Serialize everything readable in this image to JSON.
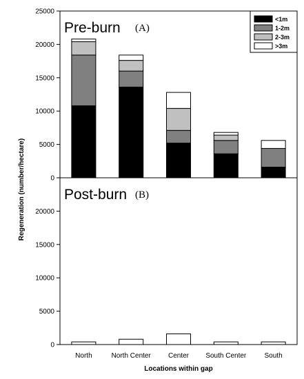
{
  "chart_data": {
    "type": "bar",
    "ylabel": "Regeneration (number/hectare)",
    "xlabel": "Locations within gap",
    "categories": [
      "North",
      "North Center",
      "Center",
      "South Center",
      "South"
    ],
    "legend_position": "top-right",
    "legend": [
      {
        "name": "<1m",
        "color": "#000000"
      },
      {
        "name": "1-2m",
        "color": "#808080"
      },
      {
        "name": "2-3m",
        "color": "#c0c0c0"
      },
      {
        "name": ">3m",
        "color": "#ffffff"
      }
    ],
    "panels": [
      {
        "title": "Pre-burn",
        "letter": "(A)",
        "ylim": [
          0,
          25000
        ],
        "yticks": [
          "0",
          "5000",
          "10000",
          "15000",
          "20000",
          "25000"
        ],
        "stacked": true,
        "series": [
          {
            "name": "<1m",
            "values": [
              10800,
              13600,
              5200,
              3600,
              1600
            ]
          },
          {
            "name": "1-2m",
            "values": [
              7600,
              2400,
              1900,
              2000,
              2800
            ]
          },
          {
            "name": "2-3m",
            "values": [
              2000,
              1600,
              3300,
              800,
              0
            ]
          },
          {
            "name": ">3m",
            "values": [
              400,
              800,
              2400,
              400,
              1200
            ]
          }
        ]
      },
      {
        "title": "Post-burn",
        "letter": "(B)",
        "ylim": [
          0,
          25000
        ],
        "yticks": [
          "0",
          "5000",
          "10000",
          "15000",
          "20000"
        ],
        "stacked": true,
        "series": [
          {
            "name": "<1m",
            "values": [
              0,
              0,
              0,
              0,
              0
            ]
          },
          {
            "name": "1-2m",
            "values": [
              0,
              0,
              0,
              0,
              0
            ]
          },
          {
            "name": "2-3m",
            "values": [
              0,
              0,
              0,
              0,
              0
            ]
          },
          {
            "name": ">3m",
            "values": [
              400,
              800,
              1600,
              400,
              400
            ]
          }
        ]
      }
    ]
  }
}
